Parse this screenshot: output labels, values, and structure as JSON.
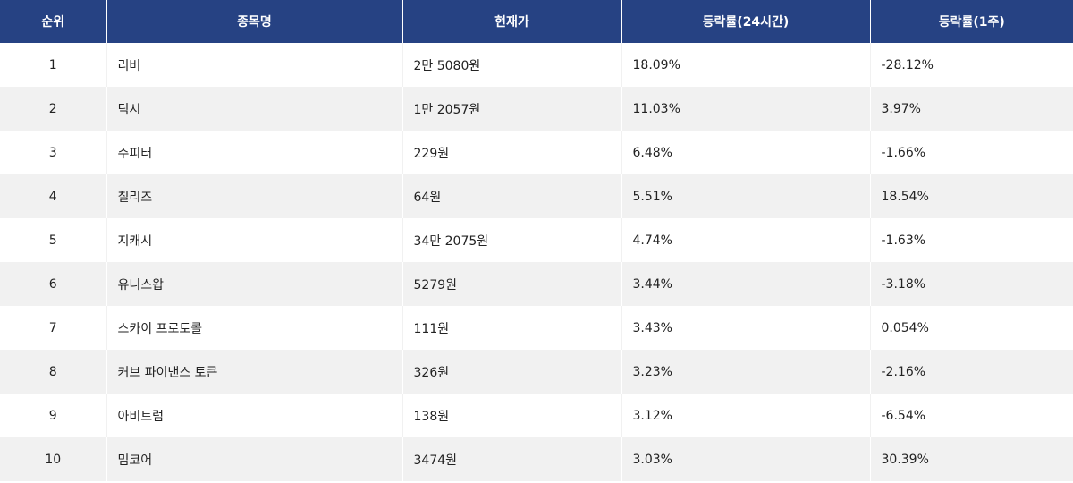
{
  "header": {
    "rank": "순위",
    "name": "종목명",
    "price": "현재가",
    "change_24h": "등락률(24시간)",
    "change_1w": "등락률(1주)"
  },
  "colors": {
    "header_bg": "#264283",
    "stripe": "#f1f1f1"
  },
  "rows": [
    {
      "rank": "1",
      "name": "리버",
      "price": "2만 5080원",
      "change_24h": "18.09%",
      "change_1w": "-28.12%"
    },
    {
      "rank": "2",
      "name": "딕시",
      "price": "1만 2057원",
      "change_24h": "11.03%",
      "change_1w": "3.97%"
    },
    {
      "rank": "3",
      "name": "주피터",
      "price": "229원",
      "change_24h": "6.48%",
      "change_1w": "-1.66%"
    },
    {
      "rank": "4",
      "name": "칠리즈",
      "price": "64원",
      "change_24h": "5.51%",
      "change_1w": "18.54%"
    },
    {
      "rank": "5",
      "name": "지캐시",
      "price": "34만 2075원",
      "change_24h": "4.74%",
      "change_1w": "-1.63%"
    },
    {
      "rank": "6",
      "name": "유니스왑",
      "price": "5279원",
      "change_24h": "3.44%",
      "change_1w": "-3.18%"
    },
    {
      "rank": "7",
      "name": "스카이 프로토콜",
      "price": "111원",
      "change_24h": "3.43%",
      "change_1w": "0.054%"
    },
    {
      "rank": "8",
      "name": "커브 파이낸스 토큰",
      "price": "326원",
      "change_24h": "3.23%",
      "change_1w": "-2.16%"
    },
    {
      "rank": "9",
      "name": "아비트럼",
      "price": "138원",
      "change_24h": "3.12%",
      "change_1w": "-6.54%"
    },
    {
      "rank": "10",
      "name": "밈코어",
      "price": "3474원",
      "change_24h": "3.03%",
      "change_1w": "30.39%"
    }
  ]
}
